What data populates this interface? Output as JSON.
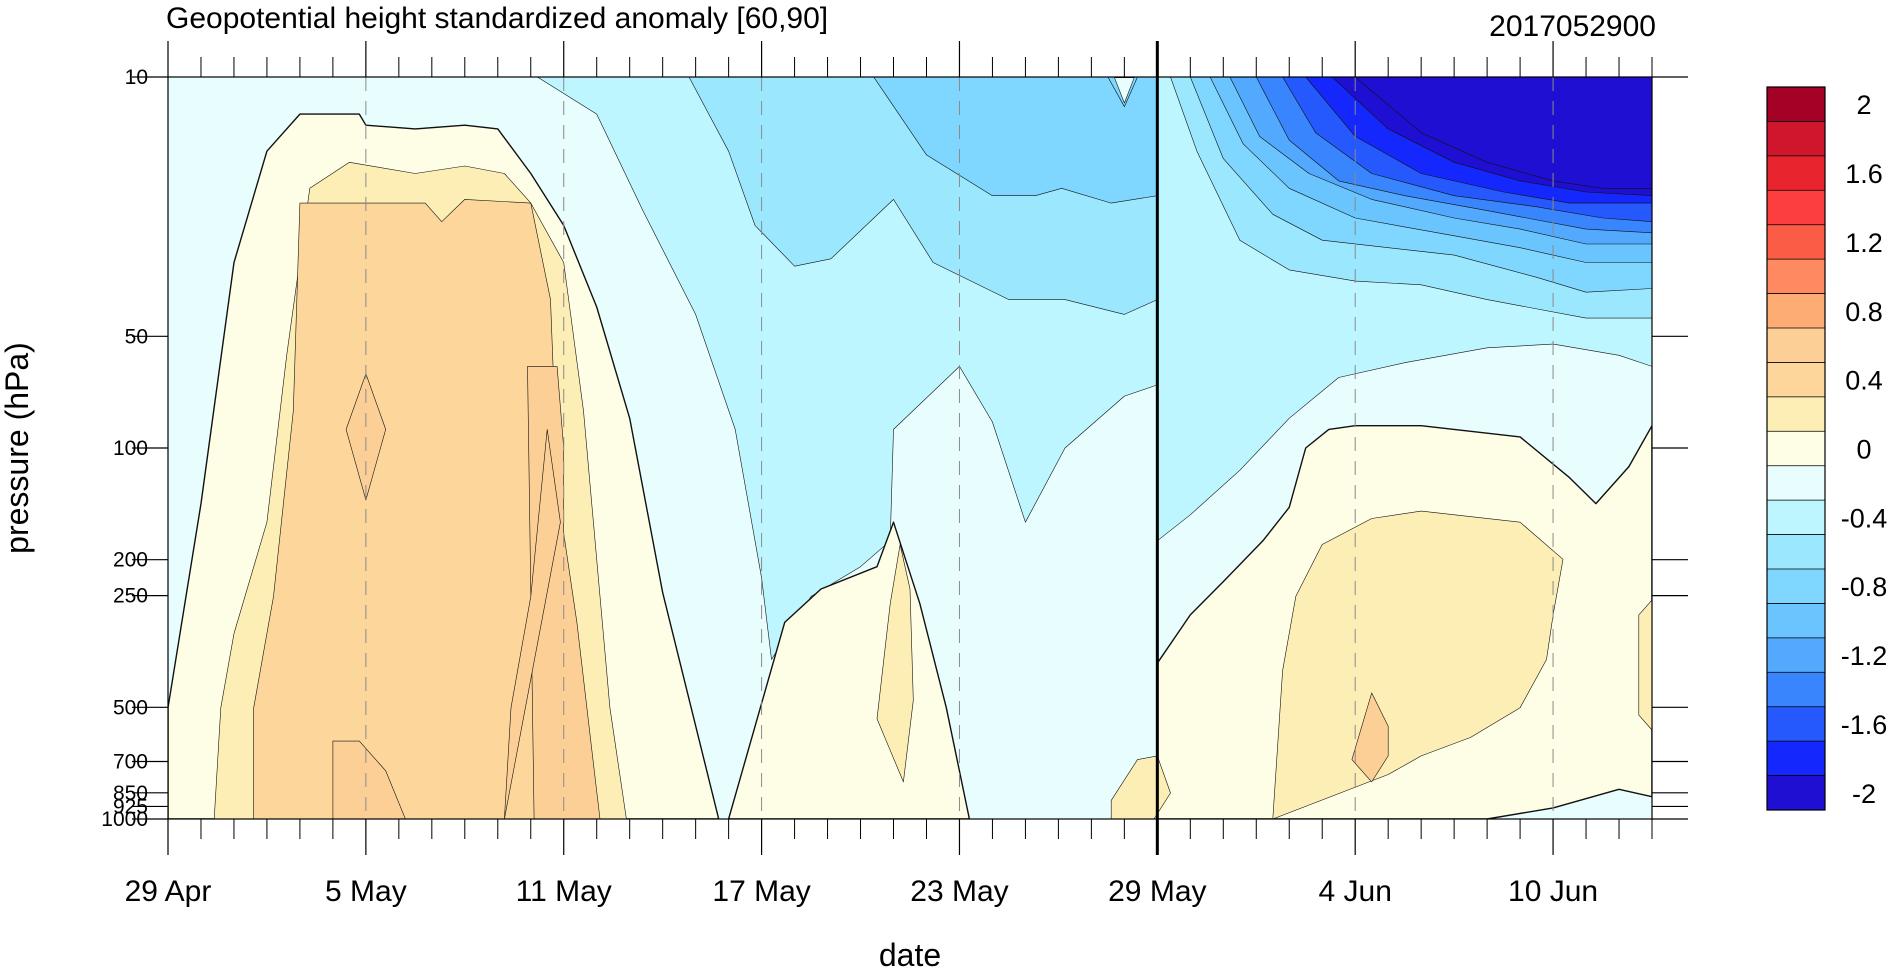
{
  "chart_data": {
    "type": "heatmap",
    "title": "Geopotential height standardized anomaly [60,90]",
    "date_stamp": "2017052900",
    "xlabel": "date",
    "ylabel": "pressure (hPa)",
    "x_ticks": [
      "29 Apr",
      "5 May",
      "11 May",
      "17 May",
      "23 May",
      "29 May",
      "4 Jun",
      "10 Jun"
    ],
    "y_ticks": [
      {
        "p": 10,
        "label": "10"
      },
      {
        "p": 50,
        "label": "50"
      },
      {
        "p": 100,
        "label": "100"
      },
      {
        "p": 200,
        "label": "200"
      },
      {
        "p": 250,
        "label": "250"
      },
      {
        "p": 500,
        "label": "500"
      },
      {
        "p": 700,
        "label": "700"
      },
      {
        "p": 850,
        "label": "850"
      },
      {
        "p": 925,
        "label": "925"
      },
      {
        "p": 1000,
        "label": "1000"
      }
    ],
    "y_scale": "log",
    "y_inverted": true,
    "yrange": [
      10,
      1000
    ],
    "xrange_days": [
      0,
      45
    ],
    "forecast_start": "29 May",
    "colorbar": {
      "levels": [
        2,
        1.8,
        1.6,
        1.4,
        1.2,
        1.0,
        0.8,
        0.6,
        0.4,
        0.2,
        0,
        -0.2,
        -0.4,
        -0.6,
        -0.8,
        -1.0,
        -1.2,
        -1.4,
        -1.6,
        -1.8,
        -2
      ],
      "labels": [
        "2",
        "1.6",
        "1.2",
        "0.8",
        "0.4",
        "0",
        "-0.4",
        "-0.8",
        "-1.2",
        "-1.6",
        "-2"
      ],
      "colors": [
        "#a50026",
        "#d0162c",
        "#e8242e",
        "#fc3e3e",
        "#fa5c45",
        "#ff8a62",
        "#fdac74",
        "#fccf97",
        "#fdd69b",
        "#fdeeb5",
        "#fefde6",
        "#e8fdfe",
        "#bdf6fe",
        "#9be8fe",
        "#7fd6fe",
        "#6ac4fe",
        "#52a9fe",
        "#3985fe",
        "#2558fd",
        "#1428fd",
        "#1f0fd2"
      ]
    },
    "regions": [
      {
        "fill_level": -0.2,
        "description": "base field"
      },
      {
        "fill_level": 0.0,
        "points": [
          [
            0,
            17
          ],
          [
            1,
            11.5
          ],
          [
            2,
            5
          ],
          [
            3,
            2
          ],
          [
            4,
            1
          ],
          [
            5.8,
            1
          ],
          [
            6,
            1.3
          ],
          [
            7.5,
            1.4
          ],
          [
            9,
            1.3
          ],
          [
            10,
            1.4
          ],
          [
            11,
            2.6
          ],
          [
            12,
            4
          ],
          [
            13,
            6.2
          ],
          [
            14,
            9.2
          ],
          [
            15,
            13.9
          ],
          [
            16.7,
            20
          ],
          [
            0,
            20
          ]
        ]
      },
      {
        "fill_level": 0.2,
        "points": [
          [
            1.4,
            20
          ],
          [
            1.6,
            17
          ],
          [
            2,
            15
          ],
          [
            3,
            12
          ],
          [
            3.6,
            7.5
          ],
          [
            4.3,
            3
          ],
          [
            5.5,
            2.3
          ],
          [
            7.5,
            2.6
          ],
          [
            9,
            2.4
          ],
          [
            10.2,
            2.6
          ],
          [
            11,
            3.4
          ],
          [
            12,
            5
          ],
          [
            12.6,
            9
          ],
          [
            13.4,
            17
          ],
          [
            13.9,
            20
          ]
        ]
      },
      {
        "fill_level": 0.4,
        "points": [
          [
            2.6,
            20
          ],
          [
            2.6,
            17
          ],
          [
            3.2,
            14
          ],
          [
            3.8,
            9
          ],
          [
            4,
            3.4
          ],
          [
            6,
            3.4
          ],
          [
            7.8,
            3.4
          ],
          [
            8.3,
            3.9
          ],
          [
            9,
            3.3
          ],
          [
            11,
            3.4
          ],
          [
            11.6,
            6
          ],
          [
            11.9,
            13
          ],
          [
            12.1,
            20
          ]
        ]
      },
      {
        "fill_level": 0.6,
        "points": [
          [
            6,
            8
          ],
          [
            6.6,
            9.5
          ],
          [
            6,
            11.4
          ],
          [
            5.4,
            9.5
          ]
        ]
      },
      {
        "fill_level": 0.6,
        "points": [
          [
            10.9,
            7.8
          ],
          [
            11.8,
            7.8
          ],
          [
            12,
            10
          ],
          [
            12,
            12.3
          ],
          [
            12.4,
            14.7
          ],
          [
            12.9,
            18.5
          ],
          [
            13.1,
            20
          ],
          [
            11.1,
            20
          ]
        ]
      },
      {
        "fill_level": 0.6,
        "points": [
          [
            10.2,
            20
          ],
          [
            10.4,
            17
          ],
          [
            11,
            14
          ],
          [
            11.5,
            9.5
          ],
          [
            11.9,
            12
          ]
        ]
      },
      {
        "fill_level": 0.6,
        "points": [
          [
            5,
            20
          ],
          [
            5,
            17.9
          ],
          [
            5.8,
            17.9
          ],
          [
            6.6,
            18.7
          ],
          [
            7.2,
            20
          ]
        ]
      },
      {
        "fill_level": -0.4,
        "points": [
          [
            11.2,
            0
          ],
          [
            13,
            1
          ],
          [
            14.4,
            3.6
          ],
          [
            16,
            6.4
          ],
          [
            17.2,
            9.5
          ],
          [
            18,
            13.5
          ],
          [
            18.3,
            15.7
          ],
          [
            19.5,
            14
          ],
          [
            21,
            13.2
          ],
          [
            21.9,
            12.5
          ],
          [
            22,
            9.5
          ],
          [
            24,
            7.8
          ],
          [
            25,
            9.3
          ],
          [
            26,
            12
          ],
          [
            27.2,
            10
          ],
          [
            29,
            8.6
          ],
          [
            30,
            8.3
          ],
          [
            30,
            0
          ]
        ]
      },
      {
        "fill_level": -0.6,
        "points": [
          [
            15.8,
            0
          ],
          [
            17,
            2
          ],
          [
            17.8,
            4
          ],
          [
            19,
            5.1
          ],
          [
            20.1,
            4.9
          ],
          [
            22,
            3.3
          ],
          [
            23.2,
            5
          ],
          [
            25.5,
            6
          ],
          [
            27.2,
            6
          ],
          [
            29,
            6.4
          ],
          [
            30,
            6
          ],
          [
            30,
            0
          ]
        ]
      },
      {
        "fill_level": -0.8,
        "points": [
          [
            21.4,
            0
          ],
          [
            23,
            2.1
          ],
          [
            25,
            3.2
          ],
          [
            26.3,
            3.2
          ],
          [
            27.1,
            3
          ],
          [
            28.6,
            3.4
          ],
          [
            30,
            3.2
          ],
          [
            30,
            0
          ]
        ]
      },
      {
        "fill_level": -0.6,
        "points": [
          [
            21.3,
            20
          ],
          [
            21.3,
            16.5
          ],
          [
            22,
            15
          ],
          [
            22.6,
            14.7
          ],
          [
            23.3,
            16
          ],
          [
            23.5,
            20
          ]
        ]
      },
      {
        "fill_level": 0.0,
        "points": [
          [
            21.5,
            13.2
          ],
          [
            22,
            12
          ],
          [
            22.8,
            14.2
          ],
          [
            23.6,
            17
          ],
          [
            24.3,
            20
          ],
          [
            17,
            20
          ],
          [
            18.7,
            14.7
          ],
          [
            19.8,
            13.8
          ]
        ]
      },
      {
        "fill_level": 0.2,
        "points": [
          [
            21.5,
            17.3
          ],
          [
            21.9,
            14.2
          ],
          [
            22.2,
            12.6
          ],
          [
            22.5,
            13.8
          ],
          [
            22.6,
            16.8
          ],
          [
            22.3,
            19
          ]
        ]
      },
      {
        "fill_level": -0.4,
        "points": [
          [
            30,
            0
          ],
          [
            37,
            0
          ],
          [
            45,
            0
          ],
          [
            45,
            7.8
          ],
          [
            44,
            7.5
          ],
          [
            42,
            7.2
          ],
          [
            40,
            7.3
          ],
          [
            37.5,
            7.7
          ],
          [
            35.5,
            8.1
          ],
          [
            34,
            9.2
          ],
          [
            32.5,
            10.6
          ],
          [
            31,
            11.8
          ],
          [
            30,
            12.5
          ]
        ]
      },
      {
        "fill_level": -0.6,
        "points": [
          [
            30.4,
            0
          ],
          [
            31.2,
            2
          ],
          [
            32.5,
            4.4
          ],
          [
            34,
            5.2
          ],
          [
            36,
            5.5
          ],
          [
            38,
            5.6
          ],
          [
            40,
            6
          ],
          [
            43,
            6.5
          ],
          [
            45,
            6.5
          ],
          [
            45,
            0
          ]
        ]
      },
      {
        "fill_level": -0.8,
        "points": [
          [
            31,
            0
          ],
          [
            32,
            2.2
          ],
          [
            33.5,
            3.7
          ],
          [
            35,
            4.4
          ],
          [
            37,
            4.6
          ],
          [
            39,
            4.8
          ],
          [
            41.5,
            5.4
          ],
          [
            43,
            5.8
          ],
          [
            45,
            5.7
          ],
          [
            45,
            0
          ]
        ]
      },
      {
        "fill_level": -1.0,
        "points": [
          [
            31.6,
            0
          ],
          [
            32.6,
            1.8
          ],
          [
            34,
            3
          ],
          [
            36,
            3.8
          ],
          [
            38.5,
            4.2
          ],
          [
            41,
            4.6
          ],
          [
            43,
            5
          ],
          [
            45,
            5
          ],
          [
            45,
            0
          ]
        ]
      },
      {
        "fill_level": -1.2,
        "points": [
          [
            32.2,
            0
          ],
          [
            33.1,
            1.6
          ],
          [
            34.6,
            2.6
          ],
          [
            36.5,
            3.3
          ],
          [
            39,
            3.8
          ],
          [
            41,
            4.1
          ],
          [
            43,
            4.5
          ],
          [
            45,
            4.5
          ],
          [
            45,
            0
          ]
        ]
      },
      {
        "fill_level": -1.4,
        "points": [
          [
            33,
            0
          ],
          [
            34,
            1.7
          ],
          [
            35.5,
            2.8
          ],
          [
            37.5,
            3.2
          ],
          [
            40,
            3.6
          ],
          [
            43,
            4.1
          ],
          [
            45,
            4.2
          ],
          [
            45,
            0
          ]
        ]
      },
      {
        "fill_level": -1.6,
        "points": [
          [
            33.8,
            0
          ],
          [
            34.8,
            1.5
          ],
          [
            36.5,
            2.6
          ],
          [
            39,
            3.2
          ],
          [
            41.5,
            3.5
          ],
          [
            43.5,
            3.8
          ],
          [
            45,
            3.9
          ],
          [
            45,
            0
          ]
        ]
      },
      {
        "fill_level": -1.8,
        "points": [
          [
            34.5,
            0
          ],
          [
            36,
            1.6
          ],
          [
            38,
            2.6
          ],
          [
            40.5,
            3.1
          ],
          [
            42.5,
            3.4
          ],
          [
            45,
            3.4
          ],
          [
            45,
            0
          ]
        ]
      },
      {
        "fill_level": -2.0,
        "points": [
          [
            35.3,
            0
          ],
          [
            37,
            1.4
          ],
          [
            39,
            2.3
          ],
          [
            41,
            2.8
          ],
          [
            43,
            3.1
          ],
          [
            45,
            3.2
          ],
          [
            45,
            0
          ]
        ]
      },
      {
        "fill_level": -2.2,
        "points": [
          [
            36,
            0
          ],
          [
            38,
            1.5
          ],
          [
            40,
            2.3
          ],
          [
            42,
            2.8
          ],
          [
            43.5,
            3.0
          ],
          [
            45,
            3.0
          ],
          [
            45,
            0
          ]
        ]
      },
      {
        "fill_level": 0.0,
        "points": [
          [
            30,
            20
          ],
          [
            30,
            15.8
          ],
          [
            31,
            14.5
          ],
          [
            32,
            13.6
          ],
          [
            33.2,
            12.5
          ],
          [
            34,
            11.6
          ],
          [
            34.5,
            10
          ],
          [
            35.2,
            9.5
          ],
          [
            36,
            9.4
          ],
          [
            38,
            9.4
          ],
          [
            41,
            9.7
          ],
          [
            42.5,
            10.8
          ],
          [
            43.3,
            11.5
          ],
          [
            44.3,
            10.5
          ],
          [
            45,
            9.4
          ],
          [
            45,
            19.4
          ],
          [
            44,
            19.2
          ],
          [
            42,
            19.7
          ],
          [
            40,
            20
          ]
        ]
      },
      {
        "fill_level": 0.2,
        "points": [
          [
            33.5,
            20
          ],
          [
            33.8,
            16
          ],
          [
            34.2,
            14
          ],
          [
            35,
            12.6
          ],
          [
            36.5,
            11.9
          ],
          [
            38,
            11.7
          ],
          [
            41,
            12
          ],
          [
            42.3,
            13
          ],
          [
            42,
            14.5
          ],
          [
            41.8,
            15.7
          ],
          [
            41,
            17
          ],
          [
            39.5,
            17.8
          ],
          [
            38,
            18.3
          ],
          [
            37,
            18.8
          ]
        ]
      },
      {
        "fill_level": 0.2,
        "points": [
          [
            44.6,
            14.5
          ],
          [
            45,
            14.1
          ],
          [
            45,
            17.6
          ],
          [
            44.6,
            17.2
          ]
        ]
      },
      {
        "fill_level": 0.6,
        "points": [
          [
            35.9,
            18.4
          ],
          [
            36.5,
            16.6
          ],
          [
            37,
            17.5
          ],
          [
            37,
            18.3
          ],
          [
            36.5,
            19
          ]
        ]
      },
      {
        "fill_level": 0.2,
        "points": [
          [
            28.6,
            20
          ],
          [
            28.6,
            19.5
          ],
          [
            29.4,
            18.4
          ],
          [
            30,
            18.3
          ],
          [
            30.4,
            19.3
          ],
          [
            29.9,
            20
          ]
        ]
      },
      {
        "fill_level": -0.8,
        "points": [
          [
            28.5,
            0
          ],
          [
            29.4,
            0
          ],
          [
            29,
            0.8
          ]
        ]
      },
      {
        "fill_level": -0.2,
        "points": [
          [
            28.7,
            0.02
          ],
          [
            29.3,
            0.02
          ],
          [
            29,
            0.7
          ]
        ]
      }
    ]
  }
}
